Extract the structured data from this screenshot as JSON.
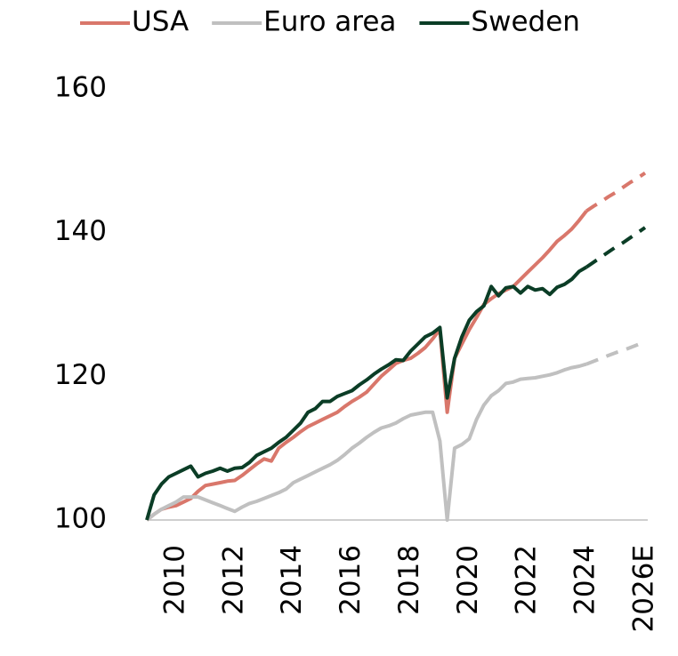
{
  "chart_data": {
    "type": "line",
    "categories": [
      null,
      null,
      null,
      null,
      "2010",
      null,
      null,
      null,
      null,
      null,
      null,
      null,
      "2012",
      null,
      null,
      null,
      null,
      null,
      null,
      null,
      "2014",
      null,
      null,
      null,
      null,
      null,
      null,
      null,
      "2016",
      null,
      null,
      null,
      null,
      null,
      null,
      null,
      "2018",
      null,
      null,
      null,
      null,
      null,
      null,
      null,
      "2020",
      null,
      null,
      null,
      null,
      null,
      null,
      null,
      "2022",
      null,
      null,
      null,
      null,
      null,
      null,
      null,
      "2024",
      null,
      null,
      null,
      null,
      null,
      null,
      null,
      "2026E"
    ],
    "series": [
      {
        "name": "USA",
        "color": "#d9776b",
        "values": [
          100,
          100.8,
          101.5,
          101.8,
          102,
          102.5,
          103,
          104,
          104.8,
          105,
          105.2,
          105.4,
          105.5,
          106.2,
          107,
          107.8,
          108.5,
          108.2,
          110,
          110.8,
          111.5,
          112.3,
          113,
          113.5,
          114,
          114.5,
          115,
          115.8,
          116.5,
          117.1,
          117.8,
          118.9,
          120,
          120.9,
          121.8,
          122.2,
          122.5,
          123.2,
          124,
          125.2,
          126.5,
          115,
          122.5,
          124.5,
          126.5,
          128.2,
          130,
          130.8,
          131.5,
          132,
          132.5,
          133.5,
          134.5,
          135.5,
          136.5,
          137.6,
          138.8,
          139.6,
          140.5,
          141.7,
          143,
          143.7,
          144.3,
          145,
          145.6,
          146.3,
          147,
          147.6,
          148.3
        ]
      },
      {
        "name": "Euro area",
        "color": "#c0c0c0",
        "values": [
          100,
          100.8,
          101.5,
          102,
          102.5,
          103.2,
          103.2,
          103.2,
          102.8,
          102.4,
          102,
          101.6,
          101.2,
          101.8,
          102.3,
          102.6,
          103,
          103.4,
          103.8,
          104.3,
          105.2,
          105.7,
          106.2,
          106.7,
          107.2,
          107.7,
          108.3,
          109.1,
          110,
          110.7,
          111.5,
          112.2,
          112.8,
          113.1,
          113.5,
          114.1,
          114.6,
          114.8,
          115,
          115,
          111,
          100,
          110,
          110.5,
          111.3,
          114,
          116,
          117.3,
          118,
          119,
          119.2,
          119.6,
          119.7,
          119.8,
          120,
          120.2,
          120.5,
          120.9,
          121.2,
          121.4,
          121.7,
          122.1,
          122.5,
          122.9,
          123.3,
          123.6,
          124,
          124.4,
          124.8
        ]
      },
      {
        "name": "Sweden",
        "color": "#0b3d26",
        "values": [
          100,
          103.5,
          105,
          106,
          106.5,
          107,
          107.5,
          106,
          106.5,
          106.8,
          107.2,
          106.8,
          107.2,
          107.3,
          108,
          109,
          109.5,
          110,
          110.8,
          111.5,
          112.5,
          113.5,
          115,
          115.5,
          116.5,
          116.5,
          117.2,
          117.6,
          118,
          118.8,
          119.5,
          120.3,
          121,
          121.6,
          122.3,
          122.2,
          123.5,
          124.5,
          125.5,
          126,
          126.8,
          117,
          122.5,
          125.5,
          127.8,
          129,
          129.8,
          132.5,
          131.2,
          132.3,
          132.5,
          131.6,
          132.5,
          132,
          132.2,
          131.4,
          132.4,
          132.8,
          133.5,
          134.6,
          135.2,
          135.9,
          136.6,
          137.3,
          138,
          138.6,
          139.3,
          140,
          140.7
        ]
      }
    ],
    "forecast_from": 60,
    "ylim": [
      100,
      160
    ],
    "yticks": [
      100,
      120,
      140,
      160
    ],
    "grid": false,
    "legend": "top"
  }
}
